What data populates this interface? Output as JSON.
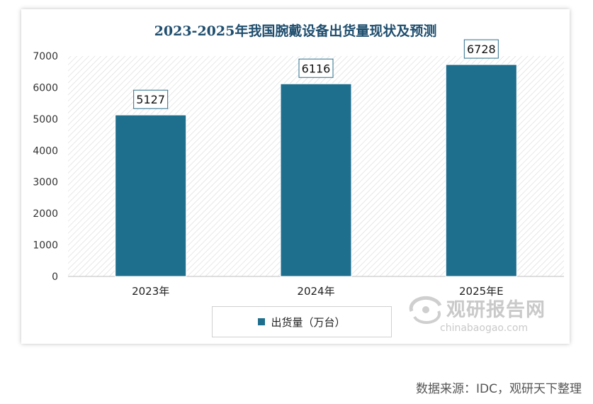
{
  "chart_data": {
    "type": "bar",
    "title": "2023-2025年我国腕戴设备出货量现状及预测",
    "categories": [
      "2023年",
      "2024年",
      "2025年E"
    ],
    "series": [
      {
        "name": "出货量（万台）",
        "values": [
          5127,
          6116,
          6728
        ]
      }
    ],
    "data_labels": [
      "5127",
      "6116",
      "6728"
    ],
    "ylim": [
      0,
      7000
    ],
    "yticks": [
      0,
      1000,
      2000,
      3000,
      4000,
      5000,
      6000,
      7000
    ],
    "xlabel": "",
    "ylabel": "",
    "legend": "bottom-center",
    "grid": false
  },
  "colors": {
    "bar": "#1e6e8e",
    "label_border": "#2a6f8a",
    "title": "#1f4e6e"
  },
  "watermark": {
    "title": "观研报告网",
    "url": "chinabaogao.com"
  },
  "source": "数据来源：IDC，观研天下整理"
}
